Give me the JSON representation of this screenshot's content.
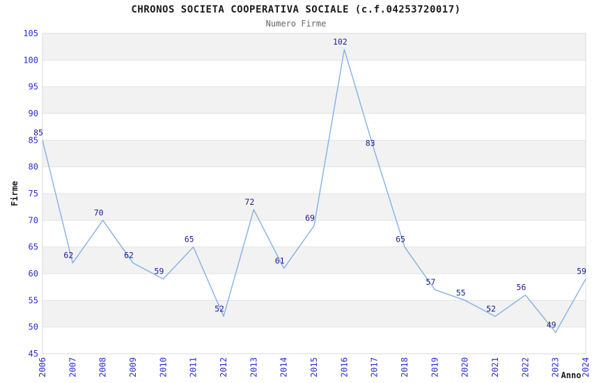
{
  "chart_data": {
    "type": "line",
    "title": "CHRONOS SOCIETA COOPERATIVA SOCIALE (c.f.04253720017)",
    "subtitle": "Numero Firme",
    "xlabel": "Anno",
    "ylabel": "Firme",
    "x": [
      2006,
      2007,
      2008,
      2009,
      2010,
      2011,
      2012,
      2013,
      2014,
      2015,
      2016,
      2017,
      2018,
      2019,
      2020,
      2021,
      2022,
      2023,
      2024
    ],
    "values": [
      85,
      62,
      70,
      62,
      59,
      65,
      52,
      72,
      61,
      69,
      102,
      83,
      65,
      57,
      55,
      52,
      56,
      49,
      59
    ],
    "ylim": [
      45,
      105
    ],
    "ytick_step": 5,
    "grid": true,
    "legend": "none",
    "data_labels_shown": true,
    "colors": {
      "line": "#7fb2e5",
      "band_fill": "#f2f2f2",
      "grid_line": "#e3e3e3",
      "plot_border": "#d9d9d9",
      "tick_label": "#2b2bd4",
      "data_label": "#1c1c8f",
      "axis_title": "#1a1a1a",
      "title": "#1a1a1a",
      "subtitle": "#666666",
      "background": "#ffffff"
    }
  }
}
